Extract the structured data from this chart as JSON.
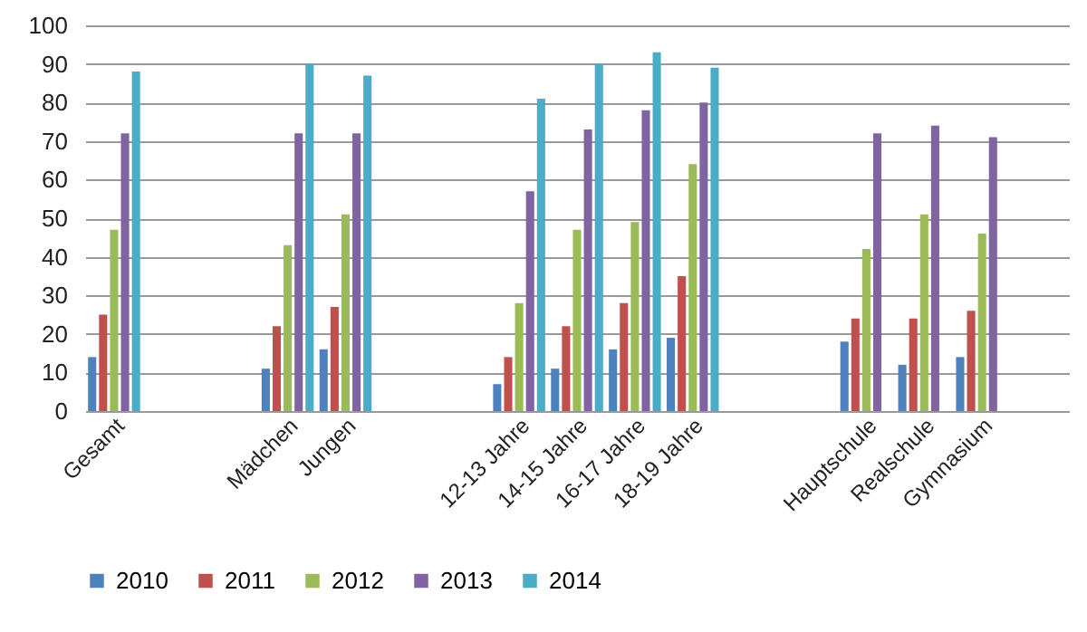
{
  "chart_data": {
    "type": "bar",
    "categories": [
      "Gesamt",
      null,
      null,
      "Mädchen",
      "Jungen",
      null,
      null,
      "12-13 Jahre",
      "14-15 Jahre",
      "16-17 Jahre",
      "18-19 Jahre",
      null,
      null,
      "Hauptschule",
      "Realschule",
      "Gymnasium",
      null
    ],
    "series": [
      {
        "name": "2010",
        "color": "#4f81bd",
        "values": [
          14,
          null,
          null,
          11,
          16,
          null,
          null,
          7,
          11,
          16,
          19,
          null,
          null,
          18,
          12,
          14,
          null
        ]
      },
      {
        "name": "2011",
        "color": "#c0504d",
        "values": [
          25,
          null,
          null,
          22,
          27,
          null,
          null,
          14,
          22,
          28,
          35,
          null,
          null,
          24,
          24,
          26,
          null
        ]
      },
      {
        "name": "2012",
        "color": "#9bbb59",
        "values": [
          47,
          null,
          null,
          43,
          51,
          null,
          null,
          28,
          47,
          49,
          64,
          null,
          null,
          42,
          51,
          46,
          null
        ]
      },
      {
        "name": "2013",
        "color": "#8064a2",
        "values": [
          72,
          null,
          null,
          72,
          72,
          null,
          null,
          57,
          73,
          78,
          80,
          null,
          null,
          72,
          74,
          71,
          null
        ]
      },
      {
        "name": "2014",
        "color": "#4bacc6",
        "values": [
          88,
          null,
          null,
          90,
          87,
          null,
          null,
          81,
          90,
          93,
          89,
          null,
          null,
          null,
          null,
          null,
          null
        ]
      }
    ],
    "ylim": [
      0,
      100
    ],
    "yticks": [
      0,
      10,
      20,
      30,
      40,
      50,
      60,
      70,
      80,
      90,
      100
    ],
    "grid": "y",
    "legend": "bottom"
  }
}
